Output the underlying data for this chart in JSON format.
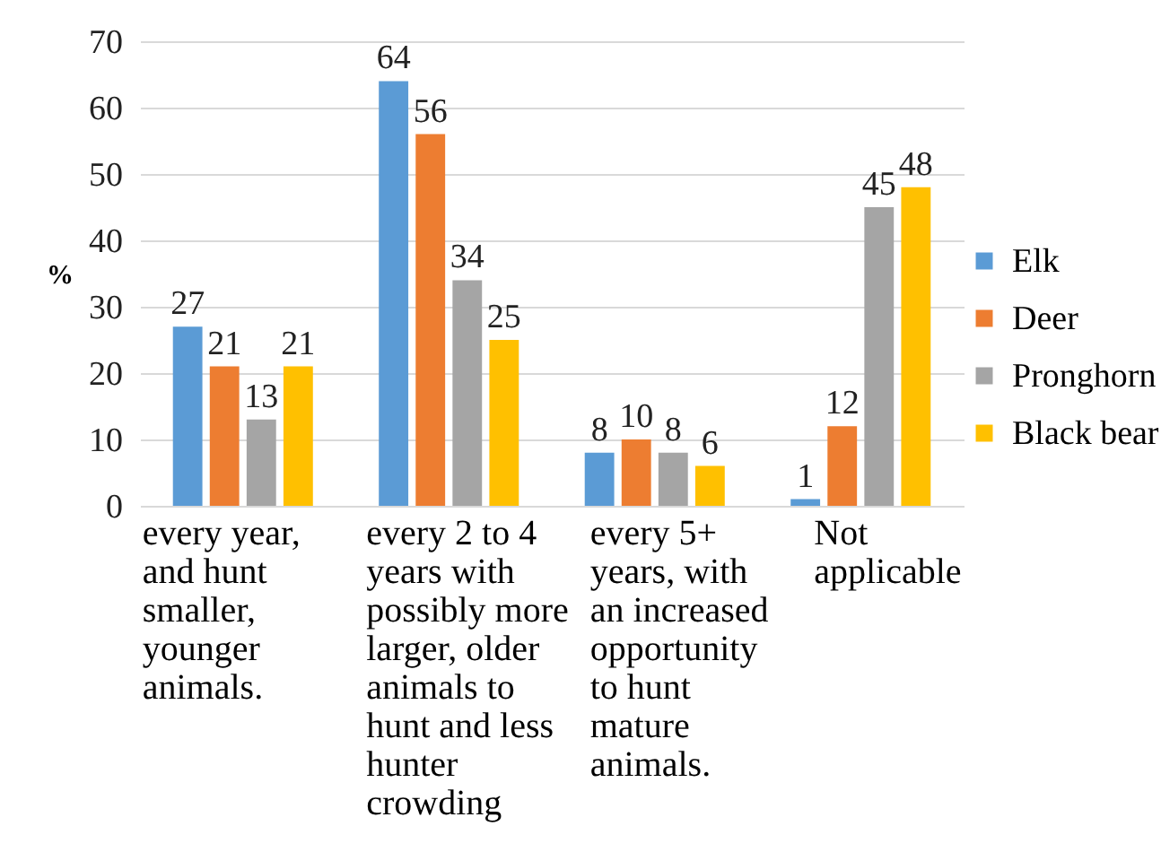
{
  "chart_data": {
    "type": "bar",
    "ylabel": "%",
    "categories": [
      "every year, and hunt smaller, younger animals.",
      "every 2 to 4 years with possibly more larger, older animals to hunt and less hunter crowding",
      "every 5+ years, with an increased opportunity to hunt mature animals.",
      "Not applicable"
    ],
    "series": [
      {
        "name": "Elk",
        "color": "#5b9bd5",
        "values": [
          27,
          64,
          8,
          1
        ]
      },
      {
        "name": "Deer",
        "color": "#ed7d31",
        "values": [
          21,
          56,
          10,
          12
        ]
      },
      {
        "name": "Pronghorn",
        "color": "#a5a5a5",
        "values": [
          13,
          34,
          8,
          45
        ]
      },
      {
        "name": "Black bear",
        "color": "#ffc000",
        "values": [
          21,
          25,
          6,
          48
        ]
      }
    ],
    "ylim": [
      0,
      70
    ],
    "yticks": [
      0,
      10,
      20,
      30,
      40,
      50,
      60,
      70
    ],
    "grid": "y",
    "legend": "right",
    "data_labels": true
  }
}
